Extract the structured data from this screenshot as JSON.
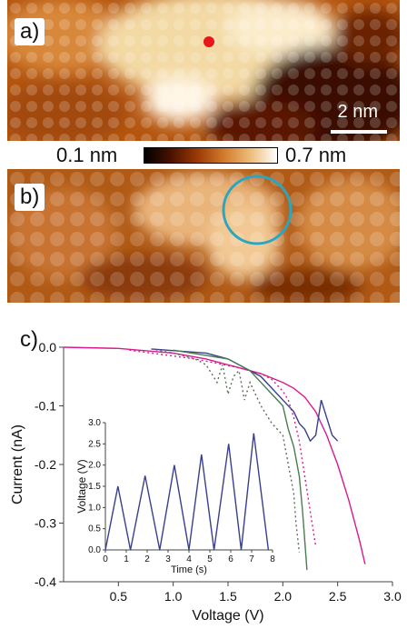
{
  "figure": {
    "panel_a_label": "a)",
    "panel_b_label": "b)",
    "panel_c_label": "c)",
    "scalebar_label": "2 nm",
    "colorbar": {
      "min_label": "0.1 nm",
      "max_label": "0.7 nm"
    },
    "marker_color": "#e8161b",
    "circle_color": "#2aa7c0"
  },
  "chart_data": {
    "type": "line",
    "xlabel": "Voltage (V)",
    "ylabel": "Current (nA)",
    "xlim": [
      0,
      3.0
    ],
    "ylim": [
      -0.4,
      0.0
    ],
    "xticks": [
      "0.5",
      "1.0",
      "1.5",
      "2.0",
      "2.5",
      "3.0"
    ],
    "yticks": [
      "0.0",
      "-0.1",
      "-0.2",
      "-0.3",
      "-0.4"
    ],
    "series": [
      {
        "color": "#d81b8c",
        "style": "solid",
        "x": [
          0,
          0.5,
          1.0,
          1.3,
          1.6,
          1.8,
          2.0,
          2.1,
          2.2,
          2.3,
          2.4,
          2.5,
          2.6,
          2.7,
          2.75
        ],
        "y": [
          0,
          -0.002,
          -0.01,
          -0.02,
          -0.035,
          -0.045,
          -0.06,
          -0.07,
          -0.085,
          -0.11,
          -0.15,
          -0.2,
          -0.26,
          -0.33,
          -0.37
        ]
      },
      {
        "color": "#d81b8c",
        "style": "dotted",
        "x": [
          0.6,
          1.2,
          1.6,
          1.8,
          1.9,
          2.0,
          2.05,
          2.1,
          2.15,
          2.2,
          2.25,
          2.3
        ],
        "y": [
          -0.005,
          -0.02,
          -0.035,
          -0.045,
          -0.055,
          -0.075,
          -0.09,
          -0.12,
          -0.16,
          -0.22,
          -0.28,
          -0.34
        ]
      },
      {
        "color": "#3a3f8c",
        "style": "solid",
        "x": [
          0.8,
          1.3,
          1.5,
          1.6,
          1.7,
          1.8,
          1.9,
          2.0,
          2.1,
          2.15,
          2.2,
          2.25,
          2.3,
          2.35,
          2.4,
          2.45,
          2.5
        ],
        "y": [
          -0.003,
          -0.01,
          -0.02,
          -0.03,
          -0.04,
          -0.05,
          -0.07,
          -0.09,
          -0.11,
          -0.13,
          -0.14,
          -0.16,
          -0.15,
          -0.09,
          -0.12,
          -0.15,
          -0.16
        ]
      },
      {
        "color": "#4a7c4e",
        "style": "solid",
        "x": [
          1.0,
          1.5,
          1.7,
          1.8,
          1.9,
          2.0,
          2.05,
          2.1,
          2.15,
          2.18,
          2.2,
          2.22
        ],
        "y": [
          -0.005,
          -0.02,
          -0.04,
          -0.06,
          -0.08,
          -0.1,
          -0.14,
          -0.17,
          -0.22,
          -0.28,
          -0.33,
          -0.38
        ]
      },
      {
        "color": "#5a6e5c",
        "style": "dotted",
        "x": [
          0.8,
          1.0,
          1.2,
          1.3,
          1.4,
          1.45,
          1.5,
          1.55,
          1.6,
          1.65,
          1.7,
          1.8,
          1.9,
          2.0,
          2.05,
          2.1,
          2.12,
          2.15
        ],
        "y": [
          -0.003,
          -0.01,
          -0.02,
          -0.03,
          -0.06,
          -0.03,
          -0.08,
          -0.05,
          -0.04,
          -0.09,
          -0.06,
          -0.1,
          -0.13,
          -0.15,
          -0.2,
          -0.25,
          -0.3,
          -0.35
        ]
      }
    ],
    "inset": {
      "xlabel": "Time (s)",
      "ylabel": "Voltage (V)",
      "xlim": [
        0,
        8
      ],
      "ylim": [
        0,
        3.0
      ],
      "xticks": [
        "0",
        "1",
        "2",
        "3",
        "4",
        "5",
        "6",
        "7",
        "8"
      ],
      "yticks": [
        "0.0",
        "0.5",
        "1.0",
        "1.5",
        "2.0",
        "2.5",
        "3.0"
      ],
      "series": [
        {
          "color": "#3a3f8c",
          "x": [
            0,
            0.6,
            1.2,
            1.9,
            2.6,
            3.3,
            4.0,
            4.6,
            5.2,
            5.9,
            6.5,
            7.1,
            7.8
          ],
          "y": [
            0,
            1.5,
            0,
            1.75,
            0,
            2.0,
            0,
            2.25,
            0,
            2.5,
            0,
            2.75,
            0
          ]
        }
      ]
    }
  }
}
